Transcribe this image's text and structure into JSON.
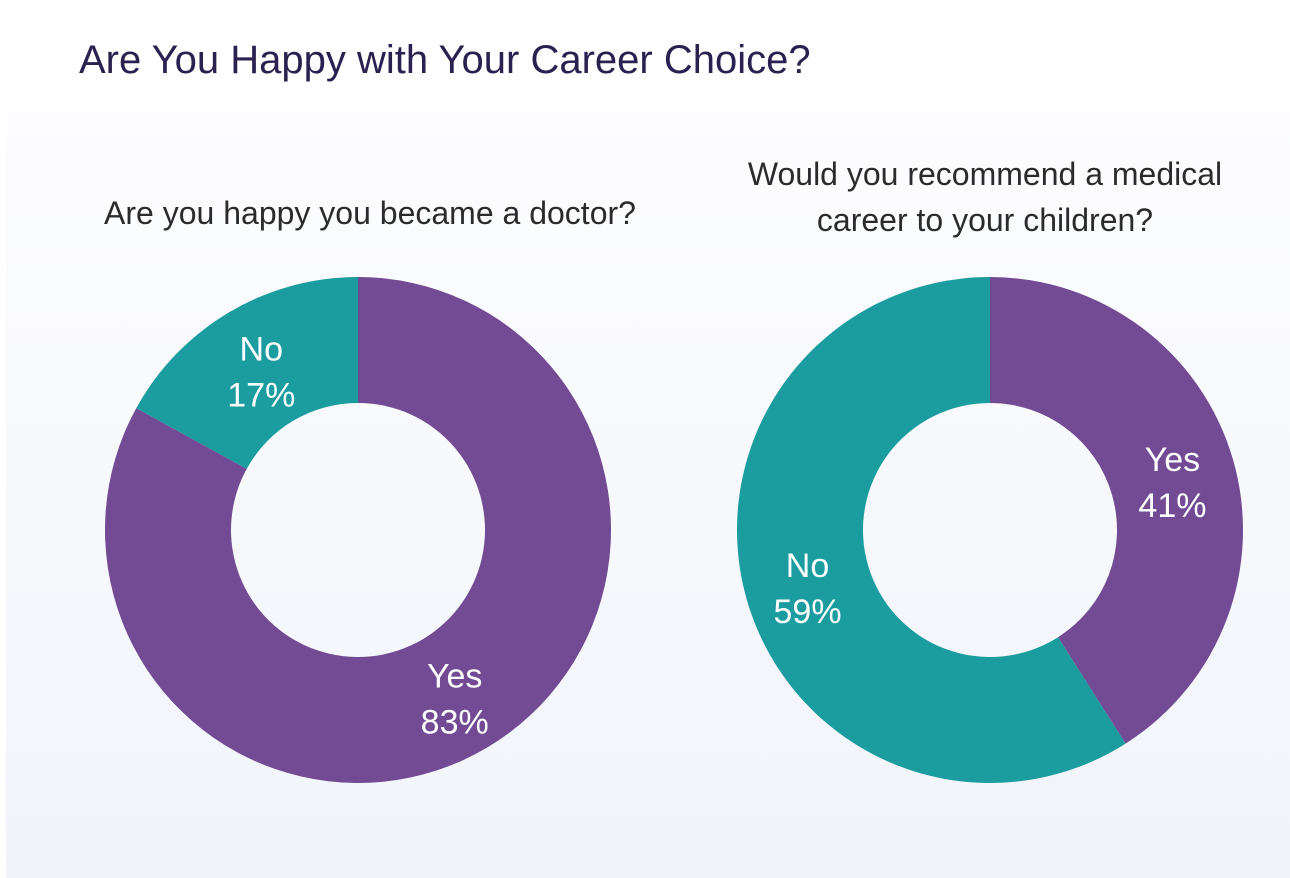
{
  "title": "Are You Happy with Your Career Choice?",
  "colors": {
    "yes": "#724b94",
    "no": "#1b9c9f",
    "title": "#2a2150",
    "label": "#ffffff"
  },
  "chart_data": [
    {
      "type": "pie",
      "donut": true,
      "title": "Are you happy you became a doctor?",
      "slices": [
        {
          "label": "Yes",
          "value": 83,
          "display": "83%",
          "color": "#724b94"
        },
        {
          "label": "No",
          "value": 17,
          "display": "17%",
          "color": "#1b9c9f"
        }
      ]
    },
    {
      "type": "pie",
      "donut": true,
      "title": "Would you recommend a medical career to your children?",
      "title_lines": [
        "Would you recommend a medical",
        "career to your children?"
      ],
      "slices": [
        {
          "label": "Yes",
          "value": 41,
          "display": "41%",
          "color": "#724b94"
        },
        {
          "label": "No",
          "value": 59,
          "display": "59%",
          "color": "#1b9c9f"
        }
      ]
    }
  ]
}
